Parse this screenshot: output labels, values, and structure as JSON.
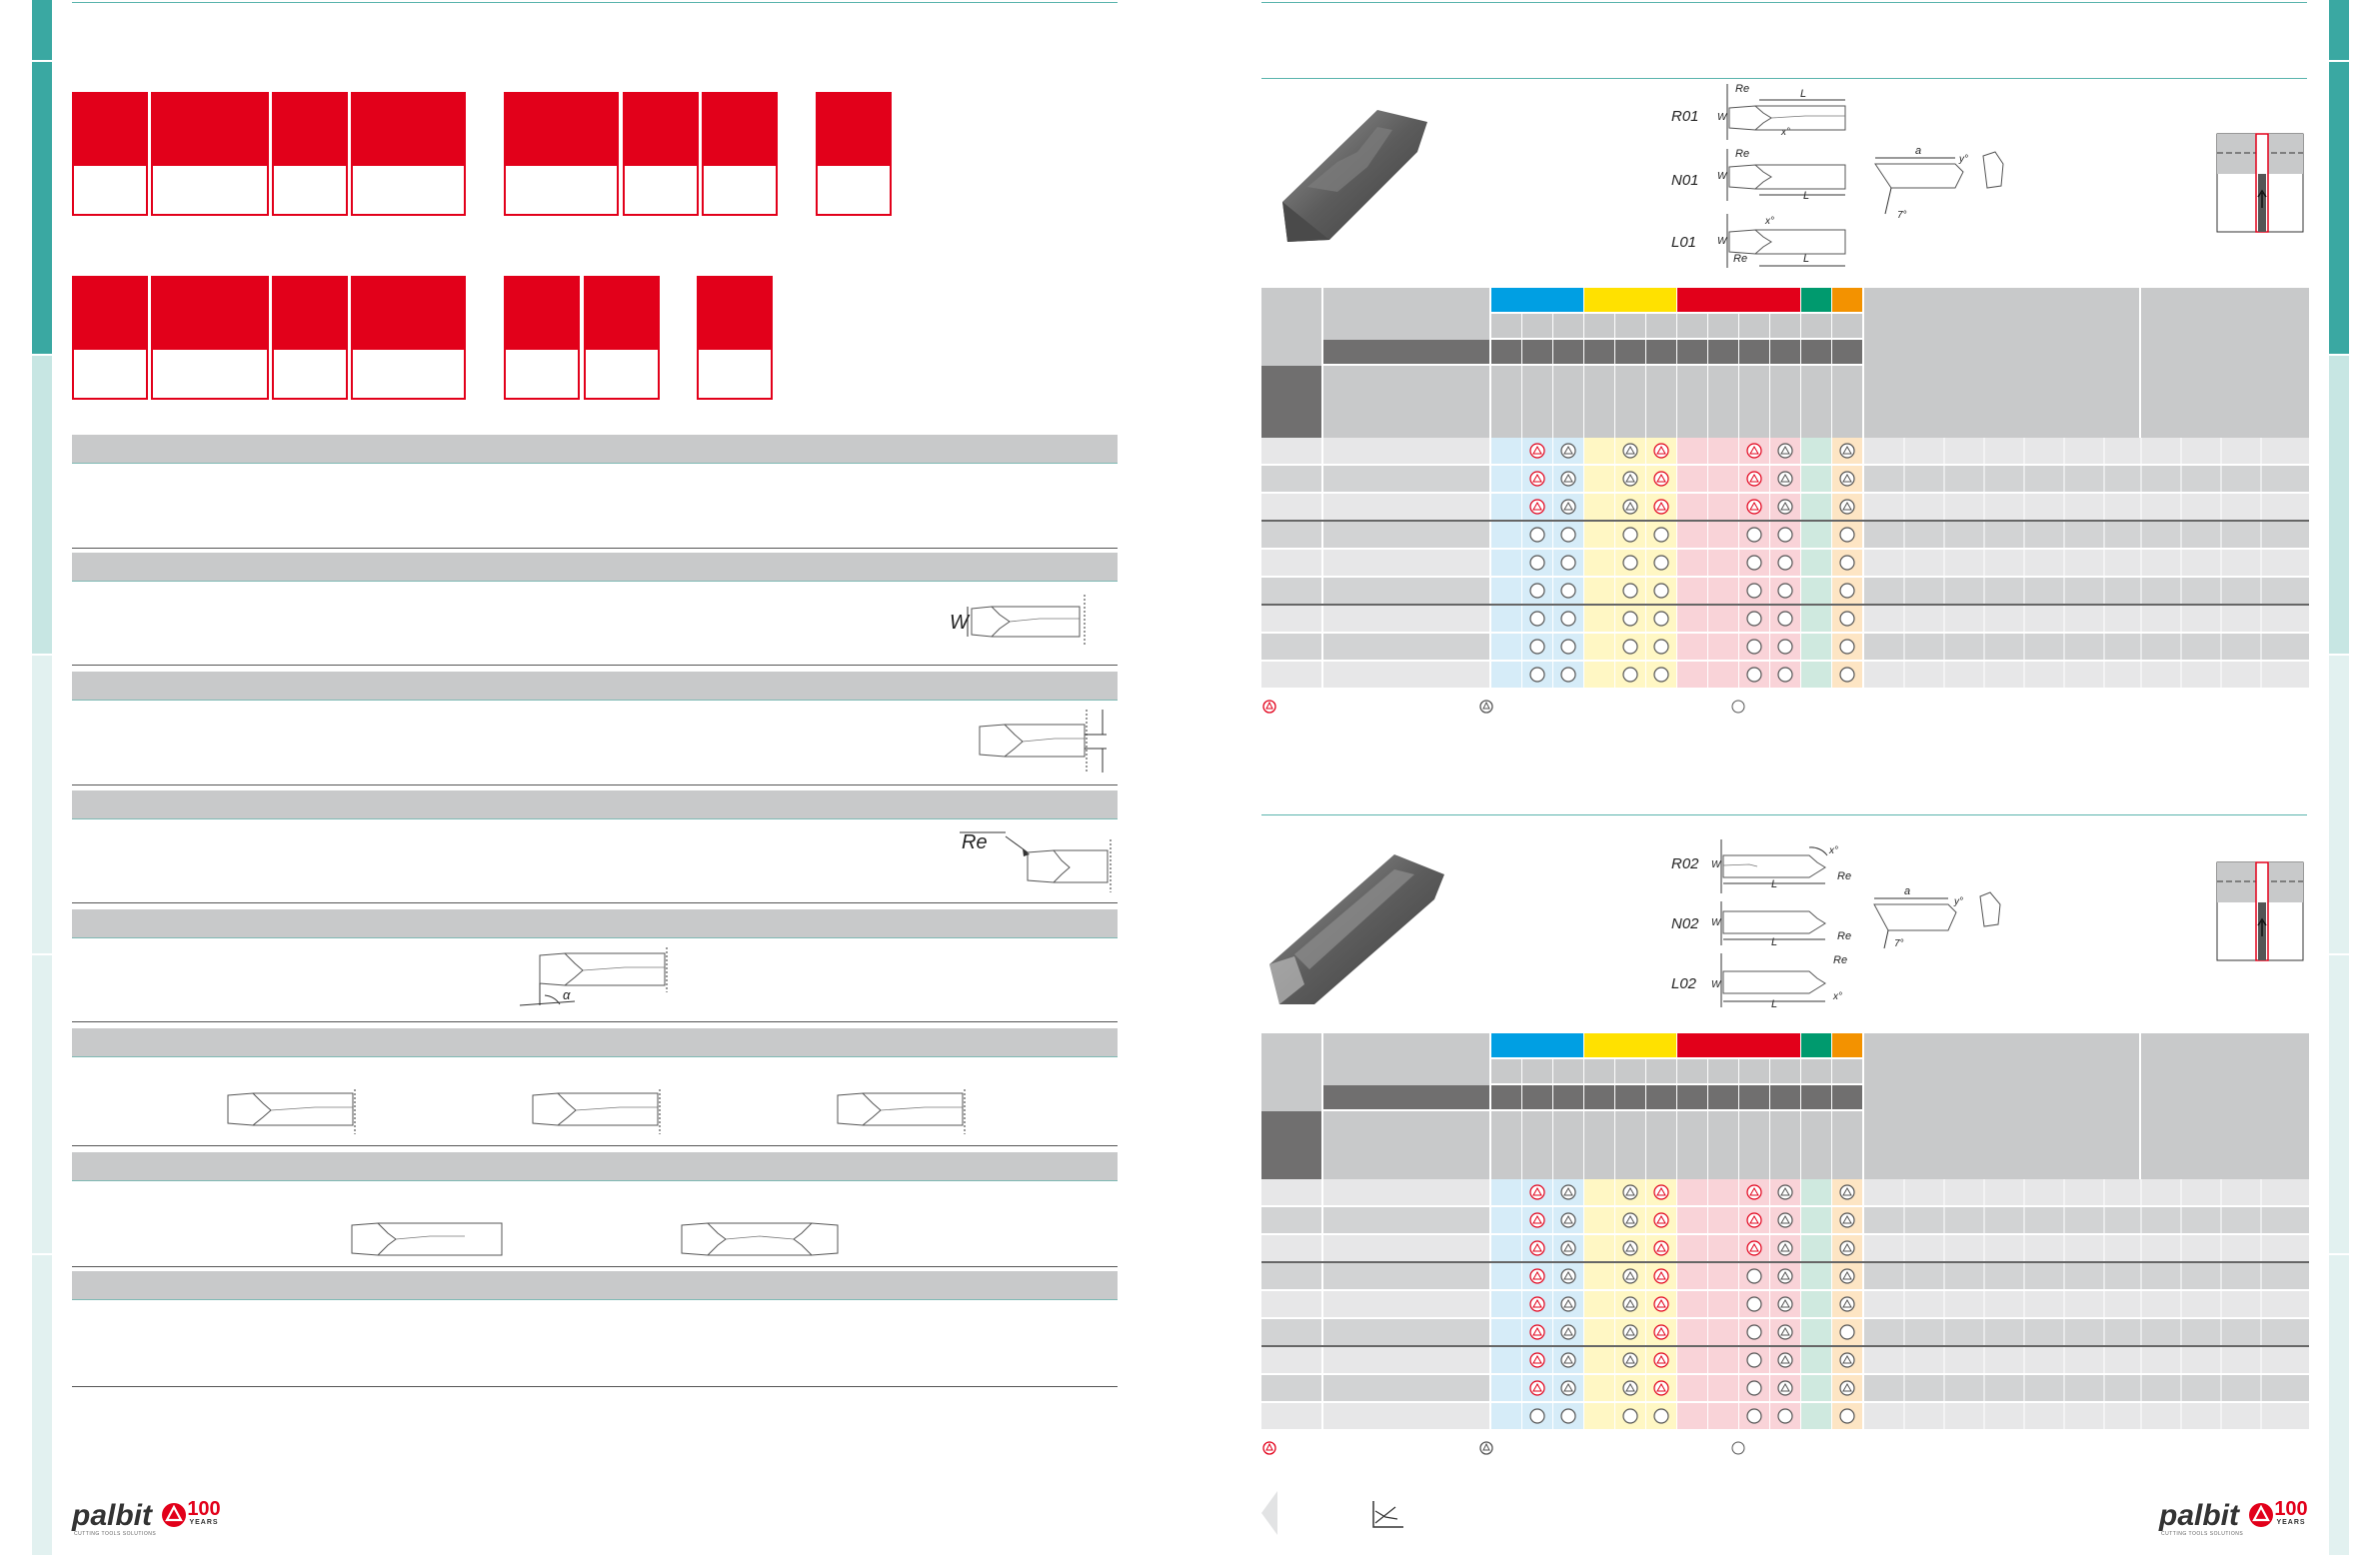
{
  "colors": {
    "teal_dark": "#3aa8a2",
    "teal_light": "#c7e6e3",
    "teal_pale": "#e2f1f0",
    "red": "#e2001a",
    "iso_p": "#009fe3",
    "iso_m": "#ffe100",
    "iso_k": "#e2001a",
    "iso_n": "#009a6e",
    "iso_s": "#f39200",
    "header_grey": "#c8c9ca",
    "header_dark": "#706f6f",
    "row_light": "#e7e7e8",
    "row_mid": "#d2d3d4"
  },
  "top_table": {
    "profiles": [
      "R01",
      "N01",
      "L01"
    ],
    "dims": {
      "re": "Re",
      "l": "L",
      "w": "W",
      "x": "x°",
      "a": "a",
      "y": "y°",
      "angle": "7°"
    }
  },
  "bottom_table": {
    "profiles": [
      "R02",
      "N02",
      "L02"
    ],
    "dims": {
      "re": "Re",
      "l": "L",
      "w": "W",
      "x": "x°",
      "a": "a",
      "y": "y°",
      "angle": "7°"
    }
  },
  "left_diagrams": {
    "w_label": "W",
    "re_label": "Re",
    "alpha_label": "α"
  },
  "footer": {
    "brand": "palbit",
    "years_num": "100",
    "years_word": "YEARS",
    "tagline": "CUTTING TOOLS SOLUTIONS"
  }
}
